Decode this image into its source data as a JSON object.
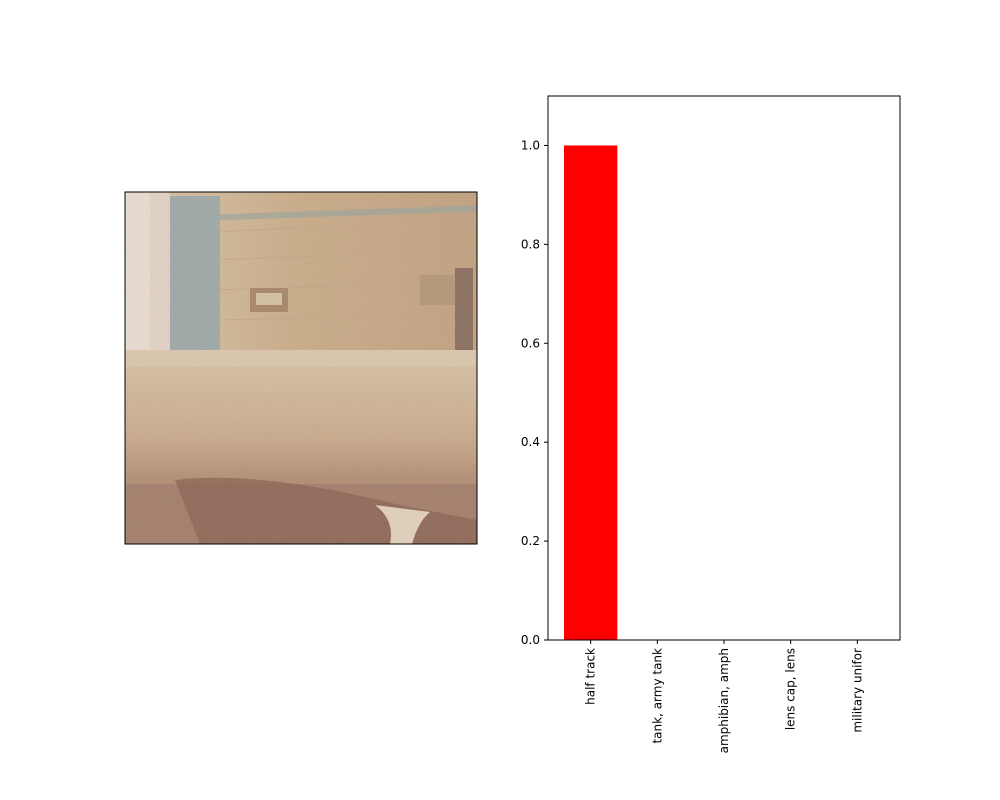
{
  "image_panel": {
    "description": "bathroom-bathtub-photo",
    "palette": {
      "wall": "#c9ab86",
      "wall_light": "#d8c0a0",
      "tub": "#cdb091",
      "tub_shadow": "#8a6250",
      "floor": "#b48f76",
      "towel": "#9aa3a2"
    }
  },
  "chart_data": {
    "type": "bar",
    "categories": [
      "half track",
      "tank, army tank",
      "amphibian, amph",
      "lens cap, lens",
      "military unifor"
    ],
    "values": [
      1.0,
      0.0,
      0.0,
      0.0,
      0.0
    ],
    "ylim": [
      0,
      1.1
    ],
    "yticks": [
      "0.0",
      "0.2",
      "0.4",
      "0.6",
      "0.8",
      "1.0"
    ],
    "ytick_values": [
      0.0,
      0.2,
      0.4,
      0.6,
      0.8,
      1.0
    ],
    "bar_color": "#ff0000",
    "grid": false,
    "title": "",
    "xlabel": "",
    "ylabel": ""
  }
}
